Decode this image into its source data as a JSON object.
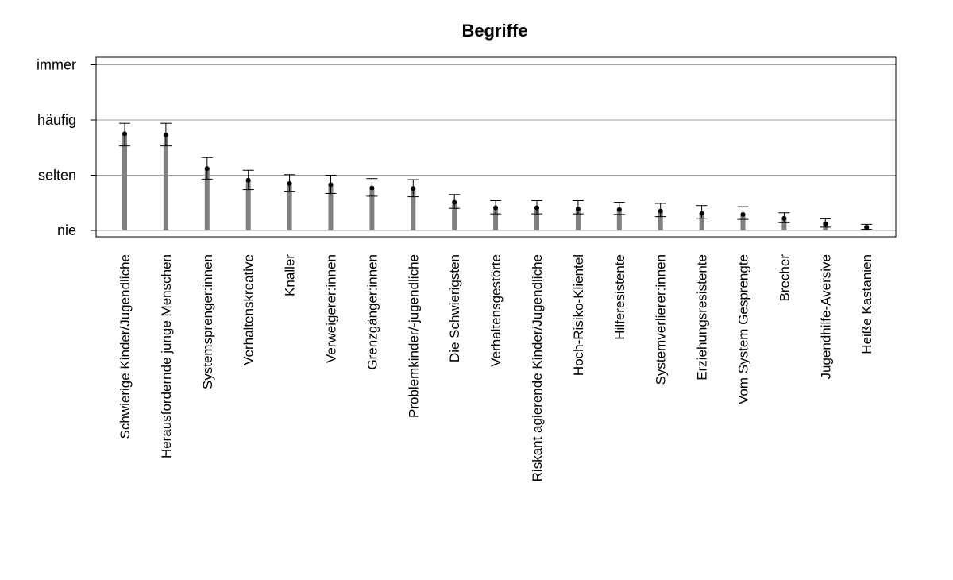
{
  "chart_data": {
    "type": "bar",
    "title": "Begriffe",
    "xlabel": "",
    "ylabel": "",
    "y_scale": [
      "nie",
      "selten",
      "häufig",
      "immer"
    ],
    "ylim": [
      0,
      3
    ],
    "grid": true,
    "categories": [
      "Schwierige Kinder/Jugendliche",
      "Herausfordernde junge Menschen",
      "Systemsprenger:innen",
      "Verhaltenskreative",
      "Knaller",
      "Verweigerer:innen",
      "Grenzgänger:innen",
      "Problemkinder/-jugendliche",
      "Die Schwierigsten",
      "Verhaltensgestörte",
      "Riskant agierende Kinder/Jugendliche",
      "Hoch-Risiko-Klientel",
      "Hilferesistente",
      "Systemverlierer:innen",
      "Erziehungsresistente",
      "Vom System Gesprengte",
      "Brecher",
      "Jugendhilfe-Aversive",
      "Heiße Kastanien"
    ],
    "values": [
      1.75,
      1.73,
      1.12,
      0.91,
      0.85,
      0.83,
      0.77,
      0.76,
      0.51,
      0.41,
      0.41,
      0.39,
      0.38,
      0.35,
      0.31,
      0.29,
      0.22,
      0.12,
      0.06
    ],
    "ci_lower": [
      1.53,
      1.53,
      0.93,
      0.74,
      0.7,
      0.67,
      0.62,
      0.61,
      0.4,
      0.3,
      0.3,
      0.3,
      0.29,
      0.25,
      0.22,
      0.2,
      0.14,
      0.06,
      0.02
    ],
    "ci_upper": [
      1.94,
      1.94,
      1.32,
      1.09,
      1.01,
      1.0,
      0.94,
      0.92,
      0.65,
      0.54,
      0.54,
      0.54,
      0.51,
      0.49,
      0.45,
      0.43,
      0.32,
      0.21,
      0.11
    ]
  }
}
